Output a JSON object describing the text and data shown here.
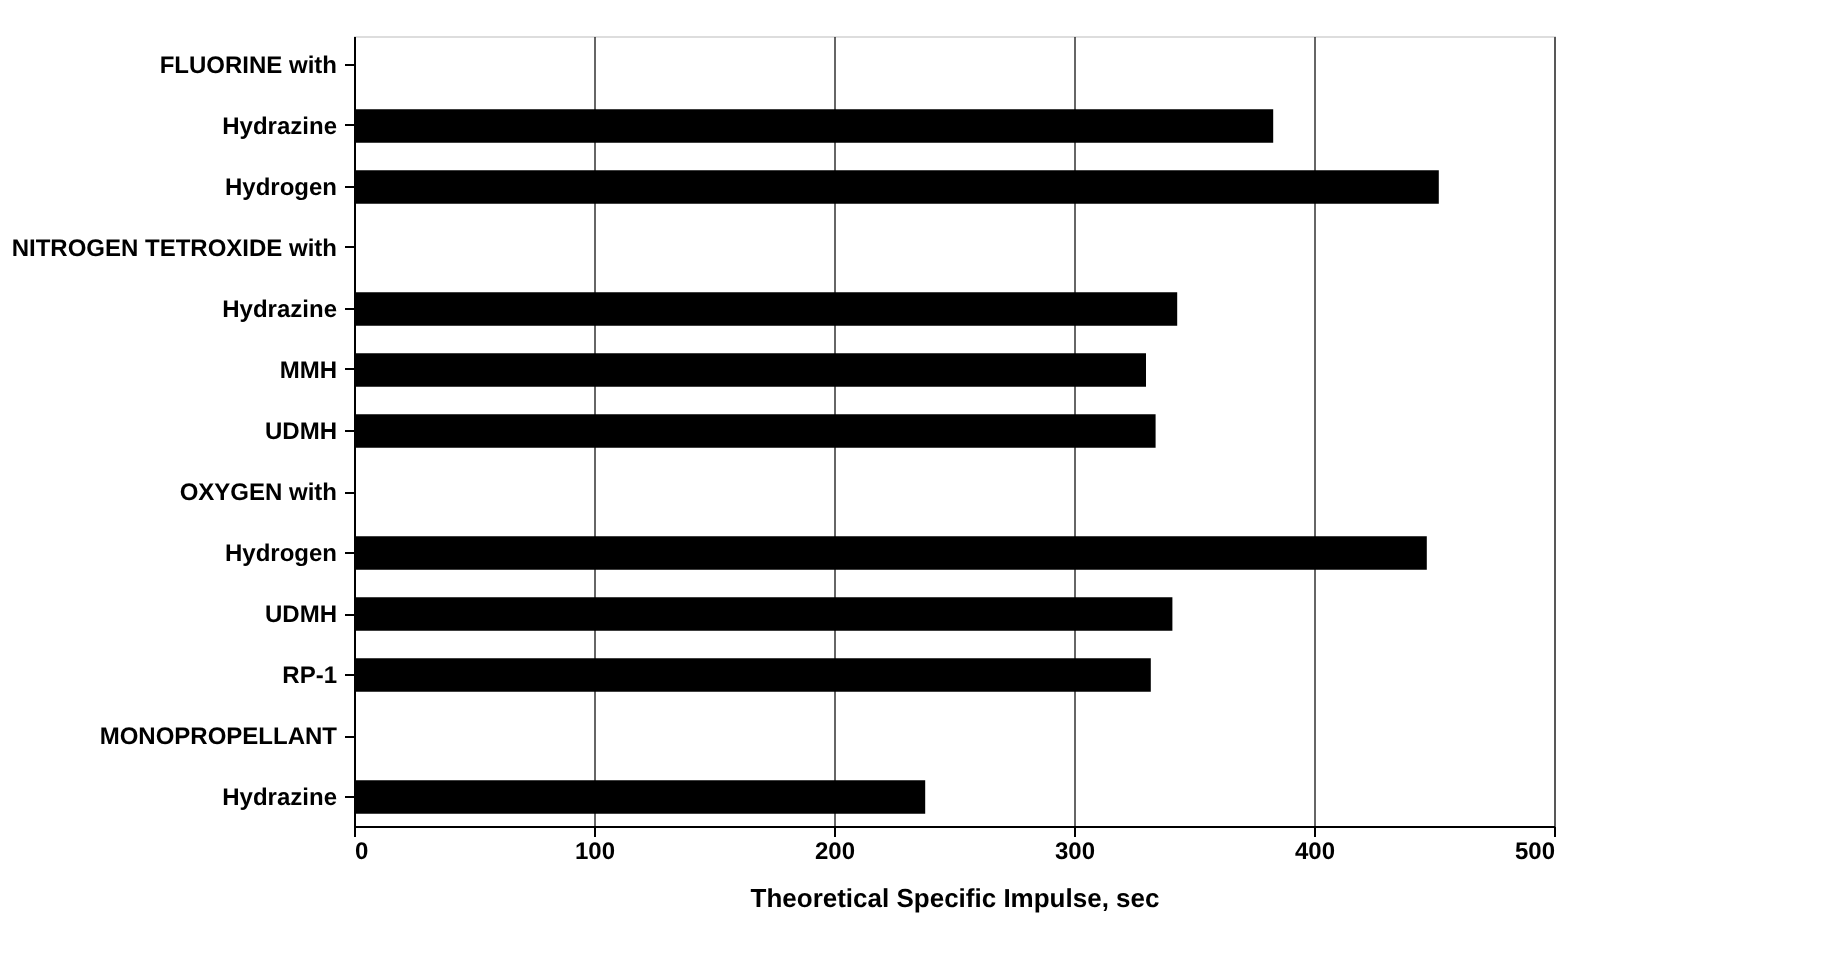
{
  "chart_data": {
    "type": "bar",
    "orientation": "horizontal",
    "xlabel": "Theoretical Specific Impulse, sec",
    "categories": [
      "FLUORINE with",
      "Hydrazine",
      "Hydrogen",
      "NITROGEN TETROXIDE with",
      "Hydrazine",
      "MMH",
      "UDMH",
      "OXYGEN with",
      "Hydrogen",
      "UDMH",
      "RP-1",
      "MONOPROPELLANT",
      "Hydrazine"
    ],
    "values": [
      null,
      383,
      452,
      null,
      343,
      330,
      334,
      null,
      447,
      341,
      332,
      null,
      238
    ],
    "color": "#000000",
    "xlim": [
      0,
      500
    ],
    "xticks": [
      0,
      100,
      200,
      300,
      400,
      500
    ],
    "grid": "x"
  }
}
